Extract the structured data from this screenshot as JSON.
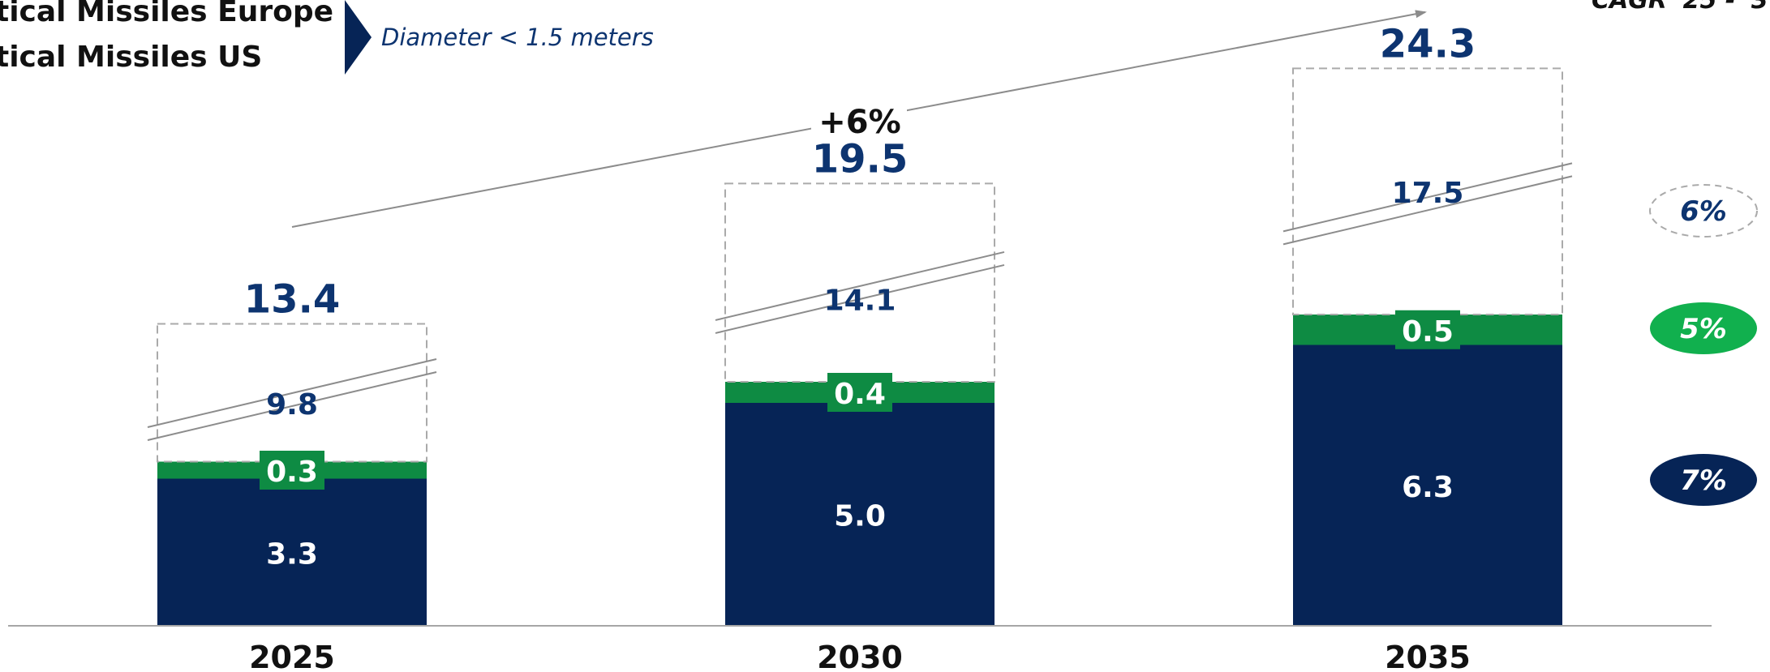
{
  "legend": {
    "items": [
      "tical Missiles Europe",
      "tical Missiles US"
    ],
    "note": "Diameter < 1.5 meters"
  },
  "cagr_header": "CAGR '25 - '3",
  "growth_label": "+6%",
  "colors": {
    "navy": "#062456",
    "green": "#0E8B43",
    "green_bright": "#11B04E",
    "total_text": "#0D3470",
    "axis": "#A6A6A6",
    "dash": "#AAAAAA",
    "break_line": "#8C8C8C"
  },
  "chart_data": {
    "type": "bar",
    "stacked": true,
    "categories": [
      "2025",
      "2030",
      "2035"
    ],
    "series": [
      {
        "name": "",
        "color": "#062456",
        "values": [
          3.3,
          5.0,
          6.3
        ],
        "labels": [
          "3.3",
          "5.0",
          "6.3"
        ],
        "cagr": "7%"
      },
      {
        "name": "",
        "color": "#0E8B43",
        "values": [
          0.3,
          0.4,
          0.5
        ],
        "labels": [
          "0.3",
          "0.4",
          "0.5"
        ],
        "cagr": "5%"
      },
      {
        "name": "",
        "color": "none",
        "values": [
          9.8,
          14.1,
          17.5
        ],
        "labels": [
          "9.8",
          "14.1",
          "17.5"
        ],
        "cagr": "6%",
        "axis_break": true
      }
    ],
    "totals": [
      13.4,
      19.5,
      24.3
    ],
    "total_labels": [
      "13.4",
      "19.5",
      "24.3"
    ],
    "title": "",
    "xlabel": "",
    "ylabel": "",
    "grid": false
  }
}
